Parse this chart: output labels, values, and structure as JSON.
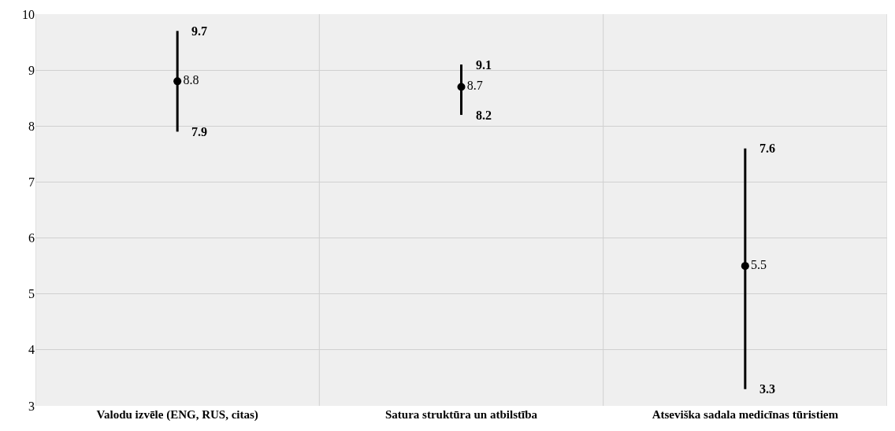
{
  "chart_data": {
    "type": "scatter",
    "categories": [
      "Valodu izvēle (ENG, RUS, citas)",
      "Satura struktūra un atbilstība",
      "Atseviška sadala medicīnas tūristiem"
    ],
    "values": [
      8.8,
      8.7,
      5.5
    ],
    "errors": [
      [
        7.9,
        9.7
      ],
      [
        8.2,
        9.1
      ],
      [
        3.3,
        7.6
      ]
    ],
    "color": "#000000",
    "marker": "circle",
    "data_labels": true,
    "annotations": [
      {
        "text": "9.7",
        "x": "Valodu izvēle (ENG, RUS, citas)",
        "y": 9.7
      },
      {
        "text": "7.9",
        "x": "Valodu izvēle (ENG, RUS, citas)",
        "y": 7.9
      },
      {
        "text": "9.1",
        "x": "Satura struktūra un atbilstība",
        "y": 9.1
      },
      {
        "text": "8.2",
        "x": "Satura struktūra un atbilstība",
        "y": 8.2
      },
      {
        "text": "7.6",
        "x": "Atseviška sadala medicīnas tūristiem",
        "y": 7.6
      },
      {
        "text": "3.3",
        "x": "Atseviška sadala medicīnas tūristiem",
        "y": 3.3
      }
    ],
    "ylim": [
      3,
      10
    ],
    "yticks": [
      3,
      4,
      5,
      6,
      7,
      8,
      9,
      10
    ],
    "grid": true
  }
}
